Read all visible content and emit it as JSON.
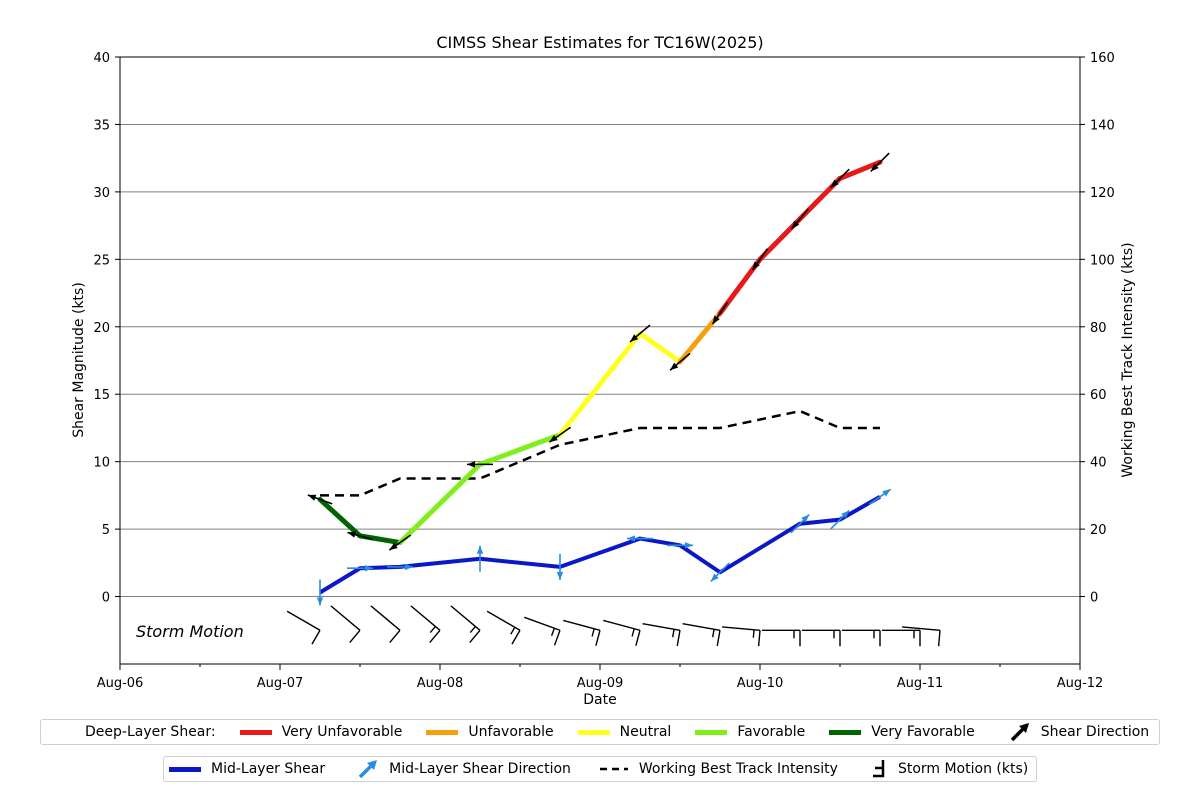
{
  "chart_data": {
    "type": "line",
    "title": "CIMSS Shear Estimates for TC16W(2025)",
    "xlabel": "Date",
    "ylabel_left": "Shear Magnitude (kts)",
    "ylabel_right": "Working Best Track Intensity (kts)",
    "x_range_days": [
      "2025-08-06",
      "2025-08-12"
    ],
    "x_ticks": [
      "Aug-06",
      "Aug-07",
      "Aug-08",
      "Aug-09",
      "Aug-10",
      "Aug-11",
      "Aug-12"
    ],
    "ylim_left": [
      -5,
      40
    ],
    "yticks_left": [
      "0",
      "5",
      "10",
      "15",
      "20",
      "25",
      "30",
      "35",
      "40"
    ],
    "ylim_right": [
      -20,
      160
    ],
    "yticks_right": [
      "0",
      "20",
      "40",
      "60",
      "80",
      "100",
      "120",
      "140",
      "160"
    ],
    "grid": true,
    "storm_motion_label": "Storm Motion",
    "category_colors": {
      "very_unfavorable": "#e41a1c",
      "unfavorable": "#f4a00e",
      "neutral": "#ffff22",
      "favorable": "#80ee1a",
      "very_favorable": "#006400"
    },
    "series": [
      {
        "name": "Deep-Layer Shear",
        "units": "kts",
        "points": [
          {
            "time": "2025-08-07 06:00",
            "value": 7.2,
            "category": "very_favorable",
            "direction_deg": 290
          },
          {
            "time": "2025-08-07 12:00",
            "value": 4.5,
            "category": "very_favorable",
            "direction_deg": 285
          },
          {
            "time": "2025-08-07 18:00",
            "value": 4.0,
            "category": "very_favorable",
            "direction_deg": 235
          },
          {
            "time": "2025-08-08 06:00",
            "value": 9.8,
            "category": "favorable",
            "direction_deg": 270
          },
          {
            "time": "2025-08-08 18:00",
            "value": 12.0,
            "category": "favorable",
            "direction_deg": 235
          },
          {
            "time": "2025-08-09 06:00",
            "value": 19.5,
            "category": "neutral",
            "direction_deg": 230
          },
          {
            "time": "2025-08-09 12:00",
            "value": 17.4,
            "category": "neutral",
            "direction_deg": 230
          },
          {
            "time": "2025-08-09 18:00",
            "value": 21.0,
            "category": "unfavorable",
            "direction_deg": 215
          },
          {
            "time": "2025-08-10 00:00",
            "value": 25.0,
            "category": "very_unfavorable",
            "direction_deg": 215
          },
          {
            "time": "2025-08-10 06:00",
            "value": 28.0,
            "category": "very_unfavorable",
            "direction_deg": 220
          },
          {
            "time": "2025-08-10 12:00",
            "value": 31.0,
            "category": "very_unfavorable",
            "direction_deg": 225
          },
          {
            "time": "2025-08-10 18:00",
            "value": 32.2,
            "category": "very_unfavorable",
            "direction_deg": 225
          }
        ]
      },
      {
        "name": "Mid-Layer Shear",
        "color": "#0a18c8",
        "arrow_color": "#2a8be0",
        "units": "kts",
        "points": [
          {
            "time": "2025-08-07 06:00",
            "value": 0.3,
            "direction_deg": 180
          },
          {
            "time": "2025-08-07 12:00",
            "value": 2.1,
            "direction_deg": 90
          },
          {
            "time": "2025-08-07 18:00",
            "value": 2.2,
            "direction_deg": 90
          },
          {
            "time": "2025-08-08 06:00",
            "value": 2.8,
            "direction_deg": 0
          },
          {
            "time": "2025-08-08 18:00",
            "value": 2.2,
            "direction_deg": 180
          },
          {
            "time": "2025-08-09 06:00",
            "value": 4.3,
            "direction_deg": 270
          },
          {
            "time": "2025-08-09 12:00",
            "value": 3.8,
            "direction_deg": 90
          },
          {
            "time": "2025-08-09 18:00",
            "value": 1.8,
            "direction_deg": 225
          },
          {
            "time": "2025-08-10 06:00",
            "value": 5.4,
            "direction_deg": 45
          },
          {
            "time": "2025-08-10 12:00",
            "value": 5.7,
            "direction_deg": 45
          },
          {
            "time": "2025-08-10 18:00",
            "value": 7.4,
            "direction_deg": 55
          }
        ]
      },
      {
        "name": "Working Best Track Intensity",
        "color": "#000000",
        "units": "kts",
        "axis": "right",
        "points": [
          {
            "time": "2025-08-07 06:00",
            "value": 30
          },
          {
            "time": "2025-08-07 12:00",
            "value": 30
          },
          {
            "time": "2025-08-07 18:00",
            "value": 35
          },
          {
            "time": "2025-08-08 06:00",
            "value": 35
          },
          {
            "time": "2025-08-08 18:00",
            "value": 45
          },
          {
            "time": "2025-08-09 06:00",
            "value": 50
          },
          {
            "time": "2025-08-09 18:00",
            "value": 50
          },
          {
            "time": "2025-08-10 06:00",
            "value": 55
          },
          {
            "time": "2025-08-10 12:00",
            "value": 50
          },
          {
            "time": "2025-08-10 18:00",
            "value": 50
          }
        ]
      },
      {
        "name": "Storm Motion (kts)",
        "units": "kts",
        "points": [
          {
            "time": "2025-08-07 06:00",
            "direction_deg": 300,
            "speed_kts": 10
          },
          {
            "time": "2025-08-07 12:00",
            "direction_deg": 310,
            "speed_kts": 10
          },
          {
            "time": "2025-08-07 18:00",
            "direction_deg": 310,
            "speed_kts": 10
          },
          {
            "time": "2025-08-08 00:00",
            "direction_deg": 310,
            "speed_kts": 15
          },
          {
            "time": "2025-08-08 06:00",
            "direction_deg": 310,
            "speed_kts": 15
          },
          {
            "time": "2025-08-08 12:00",
            "direction_deg": 300,
            "speed_kts": 15
          },
          {
            "time": "2025-08-08 18:00",
            "direction_deg": 290,
            "speed_kts": 15
          },
          {
            "time": "2025-08-09 00:00",
            "direction_deg": 285,
            "speed_kts": 15
          },
          {
            "time": "2025-08-09 06:00",
            "direction_deg": 285,
            "speed_kts": 15
          },
          {
            "time": "2025-08-09 12:00",
            "direction_deg": 280,
            "speed_kts": 15
          },
          {
            "time": "2025-08-09 18:00",
            "direction_deg": 280,
            "speed_kts": 15
          },
          {
            "time": "2025-08-10 00:00",
            "direction_deg": 275,
            "speed_kts": 15
          },
          {
            "time": "2025-08-10 06:00",
            "direction_deg": 270,
            "speed_kts": 15
          },
          {
            "time": "2025-08-10 12:00",
            "direction_deg": 270,
            "speed_kts": 15
          },
          {
            "time": "2025-08-10 18:00",
            "direction_deg": 270,
            "speed_kts": 15
          },
          {
            "time": "2025-08-11 00:00",
            "direction_deg": 270,
            "speed_kts": 15
          },
          {
            "time": "2025-08-11 03:00",
            "direction_deg": 275,
            "speed_kts": 10
          }
        ]
      }
    ],
    "legend": {
      "row1": {
        "heading": "Deep-Layer Shear:",
        "items": [
          {
            "label": "Very Unfavorable",
            "color": "#e41a1c"
          },
          {
            "label": "Unfavorable",
            "color": "#f4a00e"
          },
          {
            "label": "Neutral",
            "color": "#ffff22"
          },
          {
            "label": "Favorable",
            "color": "#80ee1a"
          },
          {
            "label": "Very Favorable",
            "color": "#006400"
          },
          {
            "label": "Shear Direction",
            "icon": "black-arrow-icon"
          }
        ]
      },
      "row2": {
        "items": [
          {
            "label": "Mid-Layer Shear",
            "color": "#0a18c8"
          },
          {
            "label": "Mid-Layer Shear Direction",
            "icon": "blue-arrow-icon"
          },
          {
            "label": "Working Best Track Intensity",
            "icon": "dashed-line-icon"
          },
          {
            "label": "Storm Motion (kts)",
            "icon": "wind-barb-icon"
          }
        ]
      }
    }
  }
}
